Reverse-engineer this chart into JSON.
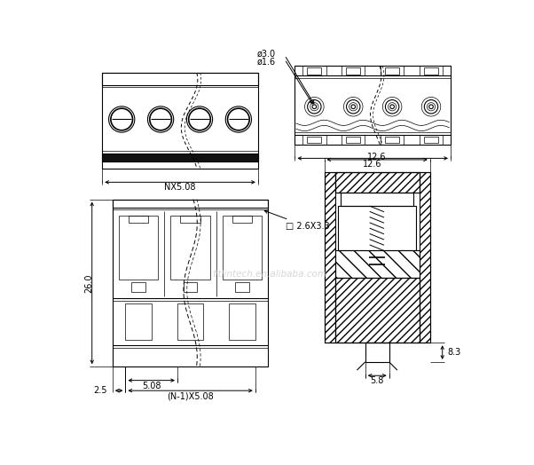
{
  "bg_color": "#ffffff",
  "annotations": {
    "nx508": "NX5.08",
    "dim126": "12.6",
    "dim26": "26.0",
    "dim25": "2.5",
    "dim508": "5.08",
    "dimn508": "(N-1)X5.08",
    "dim83": "8.3",
    "dim58": "5.8",
    "dim263": "□ 2.6X3.3",
    "dim30": "ø3.0",
    "dim16": "ø1.6"
  },
  "watermark_text": "fitlintech.en.alibaba.com",
  "font_size": 7.0
}
